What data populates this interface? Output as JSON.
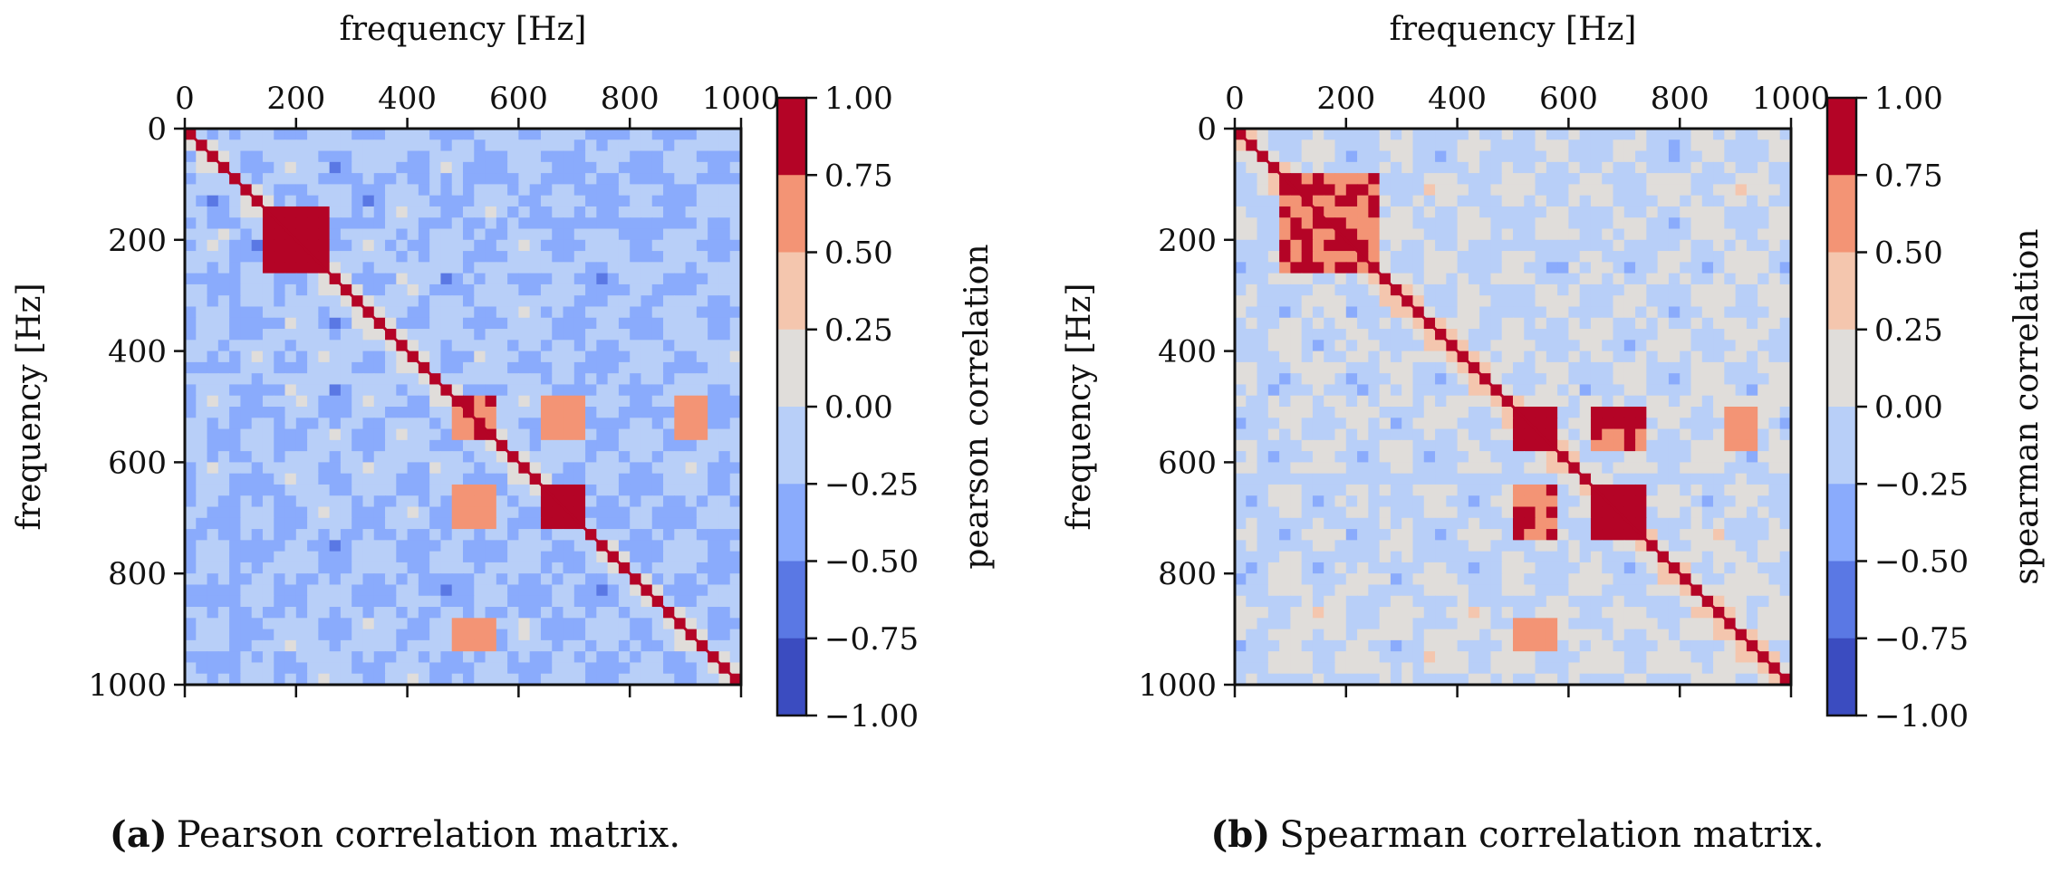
{
  "figure": {
    "captions": [
      {
        "label": "(a)",
        "text": "Pearson correlation matrix."
      },
      {
        "label": "(b)",
        "text": "Spearman correlation matrix."
      }
    ]
  },
  "chart_data": [
    {
      "type": "heatmap",
      "title": "",
      "xlabel": "frequency [Hz]",
      "ylabel": "frequency [Hz]",
      "xlim": [
        0,
        1000
      ],
      "ylim": [
        1000,
        0
      ],
      "x_ticks": [
        "0",
        "200",
        "400",
        "600",
        "800",
        "1000"
      ],
      "y_ticks": [
        "0",
        "200",
        "400",
        "600",
        "800",
        "1000"
      ],
      "colorbar": {
        "label": "pearson correlation",
        "ticks": [
          "1.00",
          "0.75",
          "0.50",
          "0.25",
          "0.00",
          "−0.25",
          "−0.50",
          "−0.75",
          "−1.00"
        ],
        "range": [
          -1,
          1
        ],
        "colormap": "coolwarm",
        "levels": 8
      },
      "description_values": {
        "diagonal": 1.0,
        "background": -0.25,
        "strong_blocks": [
          {
            "x": [
              150,
              260
            ],
            "y": [
              150,
              260
            ],
            "value": 0.85
          },
          {
            "x": [
              490,
              560
            ],
            "y": [
              490,
              560
            ],
            "value": 0.8
          },
          {
            "x": [
              640,
              720
            ],
            "y": [
              640,
              720
            ],
            "value": 0.85
          },
          {
            "x": [
              490,
              560
            ],
            "y": [
              640,
              720
            ],
            "value": 0.75
          },
          {
            "x": [
              640,
              720
            ],
            "y": [
              490,
              560
            ],
            "value": 0.75
          },
          {
            "x": [
              880,
              940
            ],
            "y": [
              490,
              560
            ],
            "value": 0.6
          },
          {
            "x": [
              490,
              560
            ],
            "y": [
              880,
              940
            ],
            "value": 0.6
          }
        ]
      },
      "colors": [
        "#3b4cc0",
        "#5a78e4",
        "#8aabfc",
        "#b8cff8",
        "#e0ddda",
        "#f4c6ae",
        "#f39475",
        "#d95847",
        "#b40426"
      ]
    },
    {
      "type": "heatmap",
      "title": "",
      "xlabel": "frequency [Hz]",
      "ylabel": "frequency [Hz]",
      "xlim": [
        0,
        1000
      ],
      "ylim": [
        1000,
        0
      ],
      "x_ticks": [
        "0",
        "200",
        "400",
        "600",
        "800",
        "1000"
      ],
      "y_ticks": [
        "0",
        "200",
        "400",
        "600",
        "800",
        "1000"
      ],
      "colorbar": {
        "label": "spearman correlation",
        "ticks": [
          "1.00",
          "0.75",
          "0.50",
          "0.25",
          "0.00",
          "−0.25",
          "−0.50",
          "−0.75",
          "−1.00"
        ],
        "range": [
          -1,
          1
        ],
        "colormap": "coolwarm",
        "levels": 8
      },
      "description_values": {
        "diagonal": 1.0,
        "background": 0.0,
        "strong_blocks": [
          {
            "x": [
              80,
              250
            ],
            "y": [
              80,
              250
            ],
            "value": 0.8
          },
          {
            "x": [
              500,
              580
            ],
            "y": [
              500,
              580
            ],
            "value": 0.85
          },
          {
            "x": [
              650,
              730
            ],
            "y": [
              650,
              730
            ],
            "value": 0.9
          },
          {
            "x": [
              500,
              580
            ],
            "y": [
              650,
              730
            ],
            "value": 0.8
          },
          {
            "x": [
              650,
              730
            ],
            "y": [
              500,
              580
            ],
            "value": 0.8
          },
          {
            "x": [
              880,
              940
            ],
            "y": [
              500,
              580
            ],
            "value": 0.7
          },
          {
            "x": [
              500,
              580
            ],
            "y": [
              880,
              940
            ],
            "value": 0.7
          }
        ]
      },
      "colors": [
        "#3b4cc0",
        "#5a78e4",
        "#8aabfc",
        "#b8cff8",
        "#e0ddda",
        "#f4c6ae",
        "#f39475",
        "#d95847",
        "#b40426"
      ]
    }
  ]
}
